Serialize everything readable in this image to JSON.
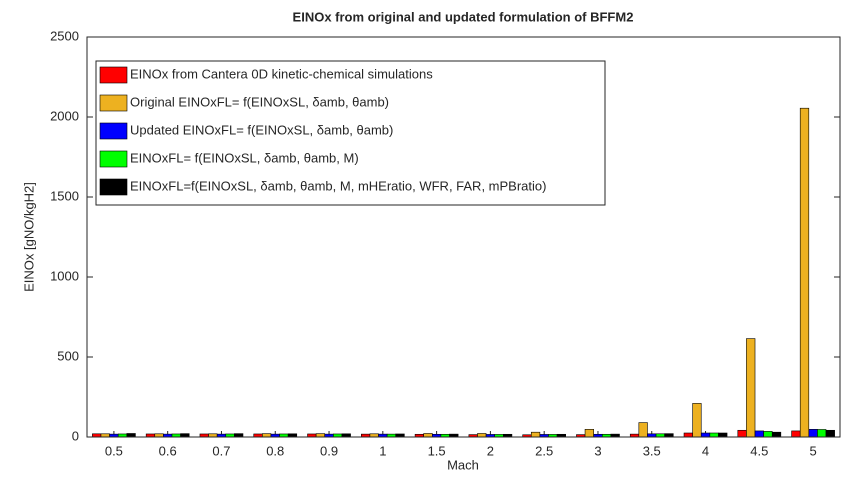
{
  "chart_data": {
    "type": "bar",
    "title": "EINOx from original and updated formulation of BFFM2",
    "x_label": "Mach",
    "y_label": "EINOx [gNO/kgH2]",
    "categories": [
      "0.5",
      "0.6",
      "0.7",
      "0.8",
      "0.9",
      "1",
      "1.5",
      "2",
      "2.5",
      "3",
      "3.5",
      "4",
      "4.5",
      "5"
    ],
    "series": [
      {
        "name": "EINOx from Cantera 0D kinetic-chemical simulations",
        "color": "#ff0000",
        "values": [
          20,
          19,
          19,
          19,
          19,
          18,
          17,
          15,
          14,
          15,
          18,
          25,
          42,
          38
        ]
      },
      {
        "name": "Original EINOxFL= f(EINOxSL, δamb, θamb)",
        "color": "#edb120",
        "values": [
          20,
          20,
          20,
          21,
          21,
          20,
          22,
          22,
          30,
          48,
          90,
          210,
          615,
          2055
        ]
      },
      {
        "name": "Updated EINOxFL= f(EINOxSL, δamb, θamb)",
        "color": "#0000ff",
        "values": [
          18,
          18,
          18,
          18,
          18,
          18,
          17,
          16,
          16,
          17,
          20,
          25,
          38,
          48
        ]
      },
      {
        "name": "EINOxFL= f(EINOxSL, δamb, θamb, M)",
        "color": "#00ff00",
        "values": [
          19,
          19,
          19,
          19,
          19,
          18,
          17,
          16,
          16,
          17,
          20,
          25,
          35,
          47
        ]
      },
      {
        "name": "EINOxFL=f(EINOxSL, δamb, θamb, M, mHEratio, WFR, FAR, mPBratio)",
        "color": "#000000",
        "values": [
          22,
          21,
          21,
          20,
          20,
          19,
          18,
          17,
          17,
          18,
          21,
          25,
          30,
          42
        ]
      }
    ],
    "ylim": [
      0,
      2500
    ],
    "yticks": [
      0,
      500,
      1000,
      1500,
      2000,
      2500
    ],
    "grid": false,
    "legend": "upper-left"
  }
}
